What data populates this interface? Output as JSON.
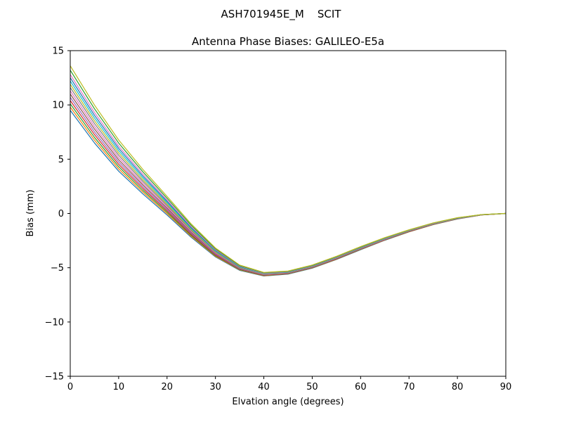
{
  "chart_data": {
    "type": "line",
    "title": "ASH701945E_M    SCIT",
    "subtitle": "Antenna Phase Biases: GALILEO-E5a",
    "xlabel": "Elvation angle (degrees)",
    "ylabel": "Bias (mm)",
    "xlim": [
      0,
      90
    ],
    "ylim": [
      -15,
      15
    ],
    "xticks": [
      0,
      10,
      20,
      30,
      40,
      50,
      60,
      70,
      80,
      90
    ],
    "yticks": [
      -15,
      -10,
      -5,
      0,
      5,
      10,
      15
    ],
    "grid": false,
    "legend": "none",
    "x": [
      0,
      5,
      10,
      15,
      20,
      25,
      30,
      35,
      40,
      45,
      50,
      55,
      60,
      65,
      70,
      75,
      80,
      85,
      90
    ],
    "series": [
      {
        "color": "#1f77b4",
        "values": [
          9.5,
          6.5,
          3.9,
          1.8,
          -0.14,
          -2.2,
          -4.0,
          -5.24,
          -5.76,
          -5.59,
          -5.04,
          -4.24,
          -3.34,
          -2.47,
          -1.7,
          -1.03,
          -0.51,
          -0.14,
          0.0
        ]
      },
      {
        "color": "#ff7f0e",
        "values": [
          9.8,
          6.76,
          4.11,
          1.97,
          -0.01,
          -2.11,
          -3.94,
          -5.2,
          -5.74,
          -5.57,
          -5.02,
          -4.22,
          -3.32,
          -2.45,
          -1.69,
          -1.02,
          -0.5,
          -0.14,
          0.0
        ]
      },
      {
        "color": "#2ca02c",
        "values": [
          10.1,
          7.01,
          4.32,
          2.13,
          0.11,
          -2.02,
          -3.88,
          -5.17,
          -5.71,
          -5.55,
          -5.0,
          -4.2,
          -3.3,
          -2.43,
          -1.67,
          -1.01,
          -0.49,
          -0.13,
          0.0
        ]
      },
      {
        "color": "#d62728",
        "values": [
          10.4,
          7.27,
          4.53,
          2.3,
          0.24,
          -1.93,
          -3.82,
          -5.13,
          -5.69,
          -5.53,
          -4.98,
          -4.18,
          -3.28,
          -2.42,
          -1.66,
          -0.99,
          -0.48,
          -0.13,
          0.0
        ]
      },
      {
        "color": "#9467bd",
        "values": [
          10.7,
          7.52,
          4.74,
          2.46,
          0.36,
          -1.84,
          -3.76,
          -5.1,
          -5.66,
          -5.51,
          -4.96,
          -4.16,
          -3.26,
          -2.4,
          -1.64,
          -0.98,
          -0.47,
          -0.13,
          0.0
        ]
      },
      {
        "color": "#8c564b",
        "values": [
          11.0,
          7.78,
          4.95,
          2.63,
          0.49,
          -1.75,
          -3.7,
          -5.06,
          -5.64,
          -5.49,
          -4.94,
          -4.14,
          -3.24,
          -2.38,
          -1.63,
          -0.97,
          -0.47,
          -0.13,
          0.0
        ]
      },
      {
        "color": "#e377c2",
        "values": [
          11.3,
          8.03,
          5.16,
          2.79,
          0.62,
          -1.66,
          -3.64,
          -5.02,
          -5.62,
          -5.46,
          -4.91,
          -4.11,
          -3.21,
          -2.36,
          -1.61,
          -0.96,
          -0.46,
          -0.12,
          0.0
        ]
      },
      {
        "color": "#7f7f7f",
        "values": [
          11.6,
          8.29,
          5.37,
          2.96,
          0.74,
          -1.57,
          -3.58,
          -4.99,
          -5.59,
          -5.44,
          -4.89,
          -4.09,
          -3.19,
          -2.34,
          -1.6,
          -0.95,
          -0.45,
          -0.12,
          0.0
        ]
      },
      {
        "color": "#bcbd22",
        "values": [
          11.9,
          8.54,
          5.58,
          3.12,
          0.87,
          -1.48,
          -3.52,
          -4.95,
          -5.57,
          -5.42,
          -4.87,
          -4.07,
          -3.17,
          -2.33,
          -1.58,
          -0.93,
          -0.44,
          -0.12,
          0.0
        ]
      },
      {
        "color": "#17becf",
        "values": [
          12.2,
          8.8,
          5.79,
          3.29,
          0.99,
          -1.39,
          -3.46,
          -4.92,
          -5.54,
          -5.4,
          -4.85,
          -4.05,
          -3.15,
          -2.31,
          -1.57,
          -0.92,
          -0.43,
          -0.11,
          0.0
        ]
      },
      {
        "color": "#1f77b4",
        "values": [
          12.5,
          9.05,
          6.0,
          3.45,
          1.12,
          -1.3,
          -3.4,
          -4.88,
          -5.52,
          -5.38,
          -4.83,
          -4.03,
          -3.13,
          -2.29,
          -1.55,
          -0.91,
          -0.42,
          -0.11,
          0.0
        ]
      },
      {
        "color": "#e377c2",
        "values": [
          12.8,
          9.31,
          6.21,
          3.62,
          1.25,
          -1.21,
          -3.34,
          -4.84,
          -5.5,
          -5.36,
          -4.81,
          -4.01,
          -3.11,
          -2.27,
          -1.54,
          -0.9,
          -0.41,
          -0.11,
          0.0
        ]
      },
      {
        "color": "#2ca02c",
        "values": [
          13.2,
          9.65,
          6.49,
          3.84,
          1.41,
          -1.09,
          -3.26,
          -4.8,
          -5.46,
          -5.33,
          -4.78,
          -3.98,
          -3.08,
          -2.25,
          -1.52,
          -0.88,
          -0.4,
          -0.1,
          0.0
        ]
      },
      {
        "color": "#bcbd22",
        "values": [
          13.6,
          9.99,
          6.77,
          4.06,
          1.58,
          -0.97,
          -3.18,
          -4.75,
          -5.43,
          -5.3,
          -4.75,
          -3.95,
          -3.05,
          -2.22,
          -1.5,
          -0.87,
          -0.39,
          -0.1,
          0.0
        ]
      }
    ]
  }
}
